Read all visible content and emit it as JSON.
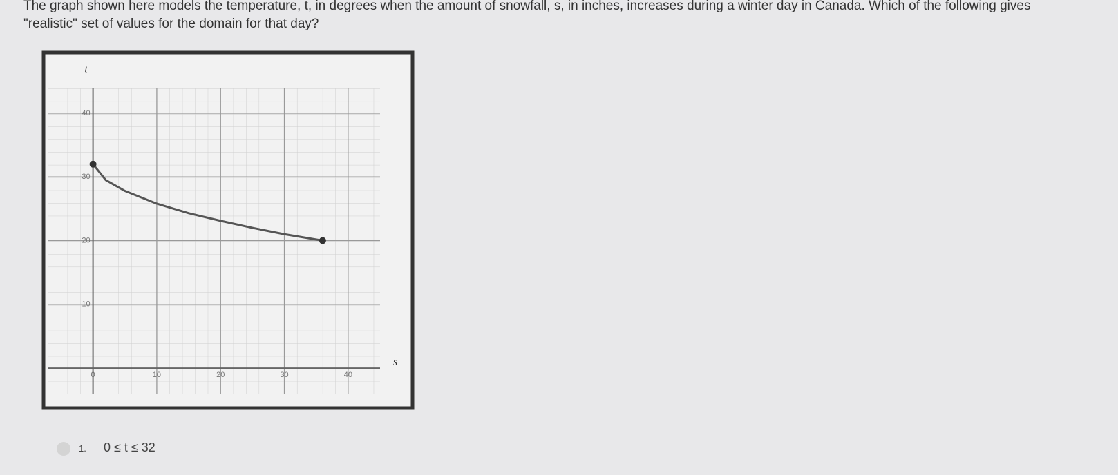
{
  "question": {
    "lines": [
      "The graph shown here models the temperature, t, in degrees when the amount of snowfall, s, in inches, increases during a winter day in Canada. Which of the following gives",
      "\"realistic\" set of values for the domain for that day?"
    ]
  },
  "chart_data": {
    "type": "line",
    "x_label": "s",
    "y_label": "t",
    "x": [
      0,
      2,
      5,
      10,
      15,
      20,
      25,
      30,
      36
    ],
    "series": [
      {
        "color": "#555555",
        "values": [
          32,
          29.5,
          27.8,
          25.8,
          24.3,
          23.1,
          22,
          21,
          20
        ]
      }
    ],
    "xlim": [
      -7,
      45
    ],
    "ylim": [
      -4,
      44
    ],
    "xticks": [
      0,
      10,
      20,
      30,
      40
    ],
    "yticks": [
      10,
      20,
      30,
      40
    ],
    "grid": true
  },
  "options": [
    {
      "number": "1.",
      "text": "0 ≤ t ≤ 32"
    }
  ]
}
